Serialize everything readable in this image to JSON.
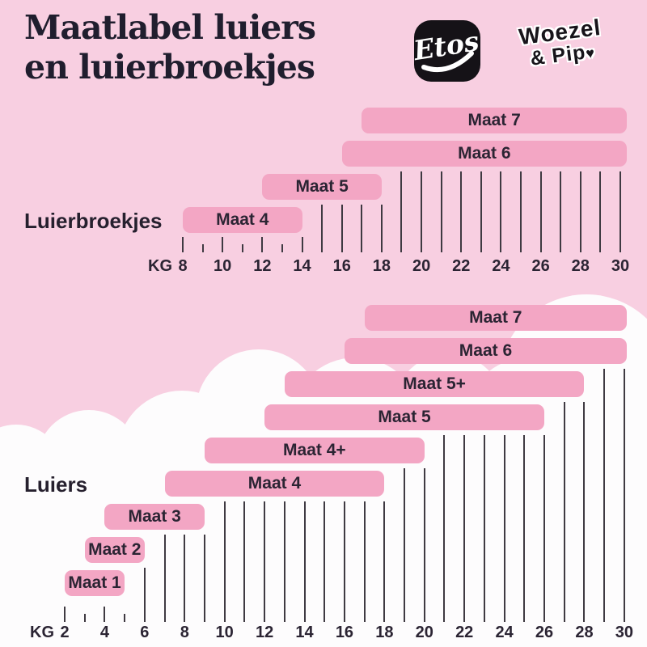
{
  "title": {
    "line1": "Maatlabel luiers",
    "line2": "en luierbroekjes"
  },
  "logos": {
    "etos_label": "Etos",
    "woezel_pip_line1": "Woezel",
    "woezel_pip_line2": "& Pip",
    "heart_glyph": "♥"
  },
  "colors": {
    "background_pink": "#f8cfe1",
    "bar_pink": "#f3a6c4",
    "cloud_white": "#fdfcfd",
    "grid_line": "#3f3a42",
    "text_dark": "#2b2433",
    "logo_black": "#151217"
  },
  "chart_data": [
    {
      "type": "bar",
      "orientation": "horizontal-range",
      "title": "Luierbroekjes",
      "unit_label": "KG",
      "x_range": [
        8,
        30
      ],
      "x_tick_step": 2,
      "tick_labels": [
        "8",
        "10",
        "12",
        "14",
        "16",
        "18",
        "20",
        "22",
        "24",
        "26",
        "28",
        "30"
      ],
      "grid": true,
      "bars": [
        {
          "label": "Maat 7",
          "from_kg": 17,
          "to_kg": 30,
          "open_ended": true
        },
        {
          "label": "Maat 6",
          "from_kg": 16,
          "to_kg": 30,
          "open_ended": true
        },
        {
          "label": "Maat 5",
          "from_kg": 12,
          "to_kg": 18,
          "open_ended": false
        },
        {
          "label": "Maat 4",
          "from_kg": 8,
          "to_kg": 14,
          "open_ended": false
        }
      ]
    },
    {
      "type": "bar",
      "orientation": "horizontal-range",
      "title": "Luiers",
      "unit_label": "KG",
      "x_range": [
        2,
        30
      ],
      "x_tick_step": 2,
      "tick_labels": [
        "2",
        "4",
        "6",
        "8",
        "10",
        "12",
        "14",
        "16",
        "18",
        "20",
        "22",
        "24",
        "26",
        "28",
        "30"
      ],
      "grid": true,
      "bars": [
        {
          "label": "Maat 7",
          "from_kg": 17,
          "to_kg": 30,
          "open_ended": true
        },
        {
          "label": "Maat 6",
          "from_kg": 16,
          "to_kg": 30,
          "open_ended": true
        },
        {
          "label": "Maat 5+",
          "from_kg": 13,
          "to_kg": 28,
          "open_ended": false
        },
        {
          "label": "Maat 5",
          "from_kg": 12,
          "to_kg": 26,
          "open_ended": false
        },
        {
          "label": "Maat 4+",
          "from_kg": 9,
          "to_kg": 20,
          "open_ended": false
        },
        {
          "label": "Maat 4",
          "from_kg": 7,
          "to_kg": 18,
          "open_ended": false
        },
        {
          "label": "Maat 3",
          "from_kg": 4,
          "to_kg": 9,
          "open_ended": false
        },
        {
          "label": "Maat 2",
          "from_kg": 3,
          "to_kg": 6,
          "open_ended": false
        },
        {
          "label": "Maat 1",
          "from_kg": 2,
          "to_kg": 5,
          "open_ended": false
        }
      ]
    }
  ]
}
